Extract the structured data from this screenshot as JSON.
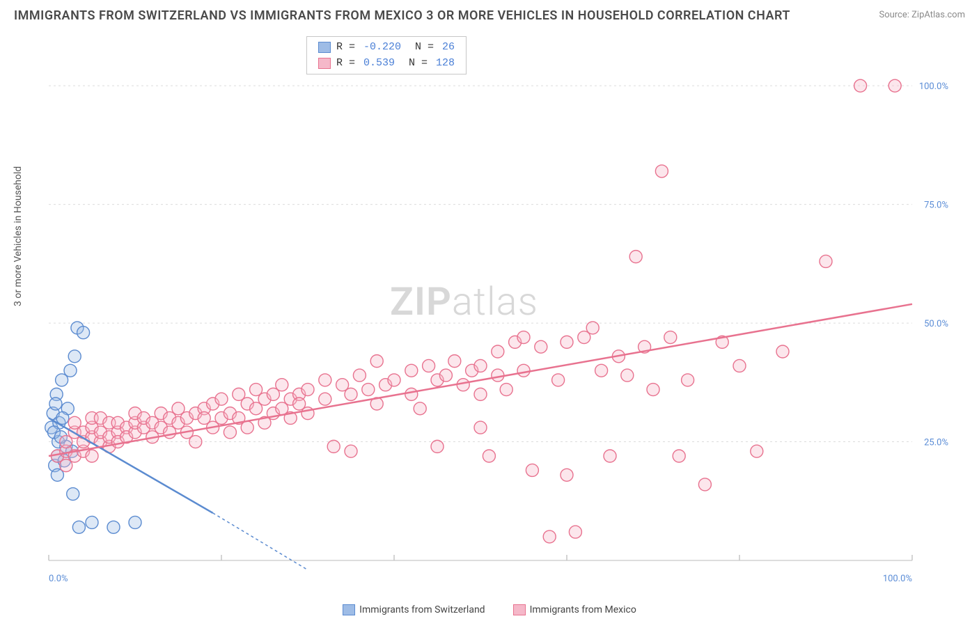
{
  "title": "IMMIGRANTS FROM SWITZERLAND VS IMMIGRANTS FROM MEXICO 3 OR MORE VEHICLES IN HOUSEHOLD CORRELATION CHART",
  "source": "Source: ZipAtlas.com",
  "y_axis_label": "3 or more Vehicles in Household",
  "watermark": {
    "bold": "ZIP",
    "rest": "atlas"
  },
  "chart": {
    "type": "scatter",
    "xlim": [
      0,
      100
    ],
    "ylim": [
      0,
      110
    ],
    "xtick_positions": [
      0,
      20,
      40,
      60,
      80,
      100
    ],
    "xtick_labels": [
      "0.0%",
      "",
      "",
      "",
      "",
      "100.0%"
    ],
    "ytick_positions": [
      0,
      25,
      50,
      75,
      100
    ],
    "ytick_labels": [
      "",
      "25.0%",
      "50.0%",
      "75.0%",
      "100.0%"
    ],
    "grid_color": "#dcdcdc",
    "grid_dash": "3,4",
    "background_color": "#ffffff",
    "marker_radius": 9,
    "marker_fill_opacity": 0.35,
    "marker_stroke_width": 1.4,
    "series": [
      {
        "name": "Immigrants from Switzerland",
        "color_fill": "#9ebce6",
        "color_stroke": "#5b8bd0",
        "R": "-0.220",
        "N": "26",
        "trend": {
          "x1": 0,
          "y1": 30,
          "x2": 19,
          "y2": 10,
          "dash_extend_x2": 30,
          "dash_extend_y2": -2
        },
        "points": [
          [
            0.3,
            28
          ],
          [
            0.5,
            31
          ],
          [
            0.7,
            20
          ],
          [
            0.9,
            35
          ],
          [
            1.0,
            22
          ],
          [
            1.1,
            25
          ],
          [
            1.2,
            29
          ],
          [
            1.5,
            38
          ],
          [
            1.8,
            21
          ],
          [
            2.0,
            24
          ],
          [
            2.2,
            32
          ],
          [
            2.5,
            40
          ],
          [
            2.7,
            23
          ],
          [
            3.0,
            43
          ],
          [
            3.3,
            49
          ],
          [
            4.0,
            48
          ],
          [
            1.0,
            18
          ],
          [
            0.6,
            27
          ],
          [
            0.8,
            33
          ],
          [
            3.5,
            7
          ],
          [
            5.0,
            8
          ],
          [
            7.5,
            7
          ],
          [
            10.0,
            8
          ],
          [
            2.8,
            14
          ],
          [
            1.4,
            26
          ],
          [
            1.6,
            30
          ]
        ]
      },
      {
        "name": "Immigrants from Mexico",
        "color_fill": "#f5b8c9",
        "color_stroke": "#e8728f",
        "R": "0.539",
        "N": "128",
        "trend": {
          "x1": 0,
          "y1": 22,
          "x2": 100,
          "y2": 54
        },
        "points": [
          [
            1,
            22
          ],
          [
            2,
            20
          ],
          [
            2,
            23
          ],
          [
            2,
            25
          ],
          [
            3,
            22
          ],
          [
            3,
            27
          ],
          [
            3,
            29
          ],
          [
            4,
            23
          ],
          [
            4,
            25
          ],
          [
            4,
            27
          ],
          [
            5,
            22
          ],
          [
            5,
            26
          ],
          [
            5,
            28
          ],
          [
            5,
            30
          ],
          [
            6,
            25
          ],
          [
            6,
            27
          ],
          [
            6,
            30
          ],
          [
            7,
            24
          ],
          [
            7,
            26
          ],
          [
            7,
            29
          ],
          [
            8,
            27
          ],
          [
            8,
            25
          ],
          [
            8,
            29
          ],
          [
            9,
            28
          ],
          [
            9,
            26
          ],
          [
            10,
            27
          ],
          [
            10,
            29
          ],
          [
            10,
            31
          ],
          [
            11,
            28
          ],
          [
            11,
            30
          ],
          [
            12,
            26
          ],
          [
            12,
            29
          ],
          [
            13,
            28
          ],
          [
            13,
            31
          ],
          [
            14,
            30
          ],
          [
            14,
            27
          ],
          [
            15,
            29
          ],
          [
            15,
            32
          ],
          [
            16,
            30
          ],
          [
            16,
            27
          ],
          [
            17,
            31
          ],
          [
            17,
            25
          ],
          [
            18,
            32
          ],
          [
            18,
            30
          ],
          [
            19,
            33
          ],
          [
            19,
            28
          ],
          [
            20,
            34
          ],
          [
            20,
            30
          ],
          [
            21,
            31
          ],
          [
            21,
            27
          ],
          [
            22,
            35
          ],
          [
            22,
            30
          ],
          [
            23,
            33
          ],
          [
            23,
            28
          ],
          [
            24,
            36
          ],
          [
            24,
            32
          ],
          [
            25,
            34
          ],
          [
            25,
            29
          ],
          [
            26,
            35
          ],
          [
            26,
            31
          ],
          [
            27,
            37
          ],
          [
            27,
            32
          ],
          [
            28,
            34
          ],
          [
            28,
            30
          ],
          [
            29,
            35
          ],
          [
            29,
            33
          ],
          [
            30,
            36
          ],
          [
            30,
            31
          ],
          [
            32,
            38
          ],
          [
            32,
            34
          ],
          [
            33,
            24
          ],
          [
            34,
            37
          ],
          [
            35,
            35
          ],
          [
            35,
            23
          ],
          [
            36,
            39
          ],
          [
            37,
            36
          ],
          [
            38,
            42
          ],
          [
            38,
            33
          ],
          [
            39,
            37
          ],
          [
            40,
            38
          ],
          [
            42,
            40
          ],
          [
            42,
            35
          ],
          [
            43,
            32
          ],
          [
            44,
            41
          ],
          [
            45,
            38
          ],
          [
            45,
            24
          ],
          [
            46,
            39
          ],
          [
            47,
            42
          ],
          [
            48,
            37
          ],
          [
            49,
            40
          ],
          [
            50,
            41
          ],
          [
            50,
            35
          ],
          [
            51,
            22
          ],
          [
            52,
            44
          ],
          [
            52,
            39
          ],
          [
            53,
            36
          ],
          [
            54,
            46
          ],
          [
            55,
            40
          ],
          [
            55,
            47
          ],
          [
            56,
            19
          ],
          [
            57,
            45
          ],
          [
            58,
            5
          ],
          [
            59,
            38
          ],
          [
            60,
            46
          ],
          [
            60,
            18
          ],
          [
            61,
            6
          ],
          [
            62,
            47
          ],
          [
            63,
            49
          ],
          [
            64,
            40
          ],
          [
            65,
            22
          ],
          [
            66,
            43
          ],
          [
            67,
            39
          ],
          [
            68,
            64
          ],
          [
            69,
            45
          ],
          [
            70,
            36
          ],
          [
            71,
            82
          ],
          [
            72,
            47
          ],
          [
            73,
            22
          ],
          [
            74,
            38
          ],
          [
            76,
            16
          ],
          [
            78,
            46
          ],
          [
            80,
            41
          ],
          [
            82,
            23
          ],
          [
            85,
            44
          ],
          [
            90,
            63
          ],
          [
            94,
            100
          ],
          [
            98,
            100
          ],
          [
            50,
            28
          ]
        ]
      }
    ]
  },
  "legend": {
    "series1_label": "Immigrants from Switzerland",
    "series2_label": "Immigrants from Mexico"
  }
}
